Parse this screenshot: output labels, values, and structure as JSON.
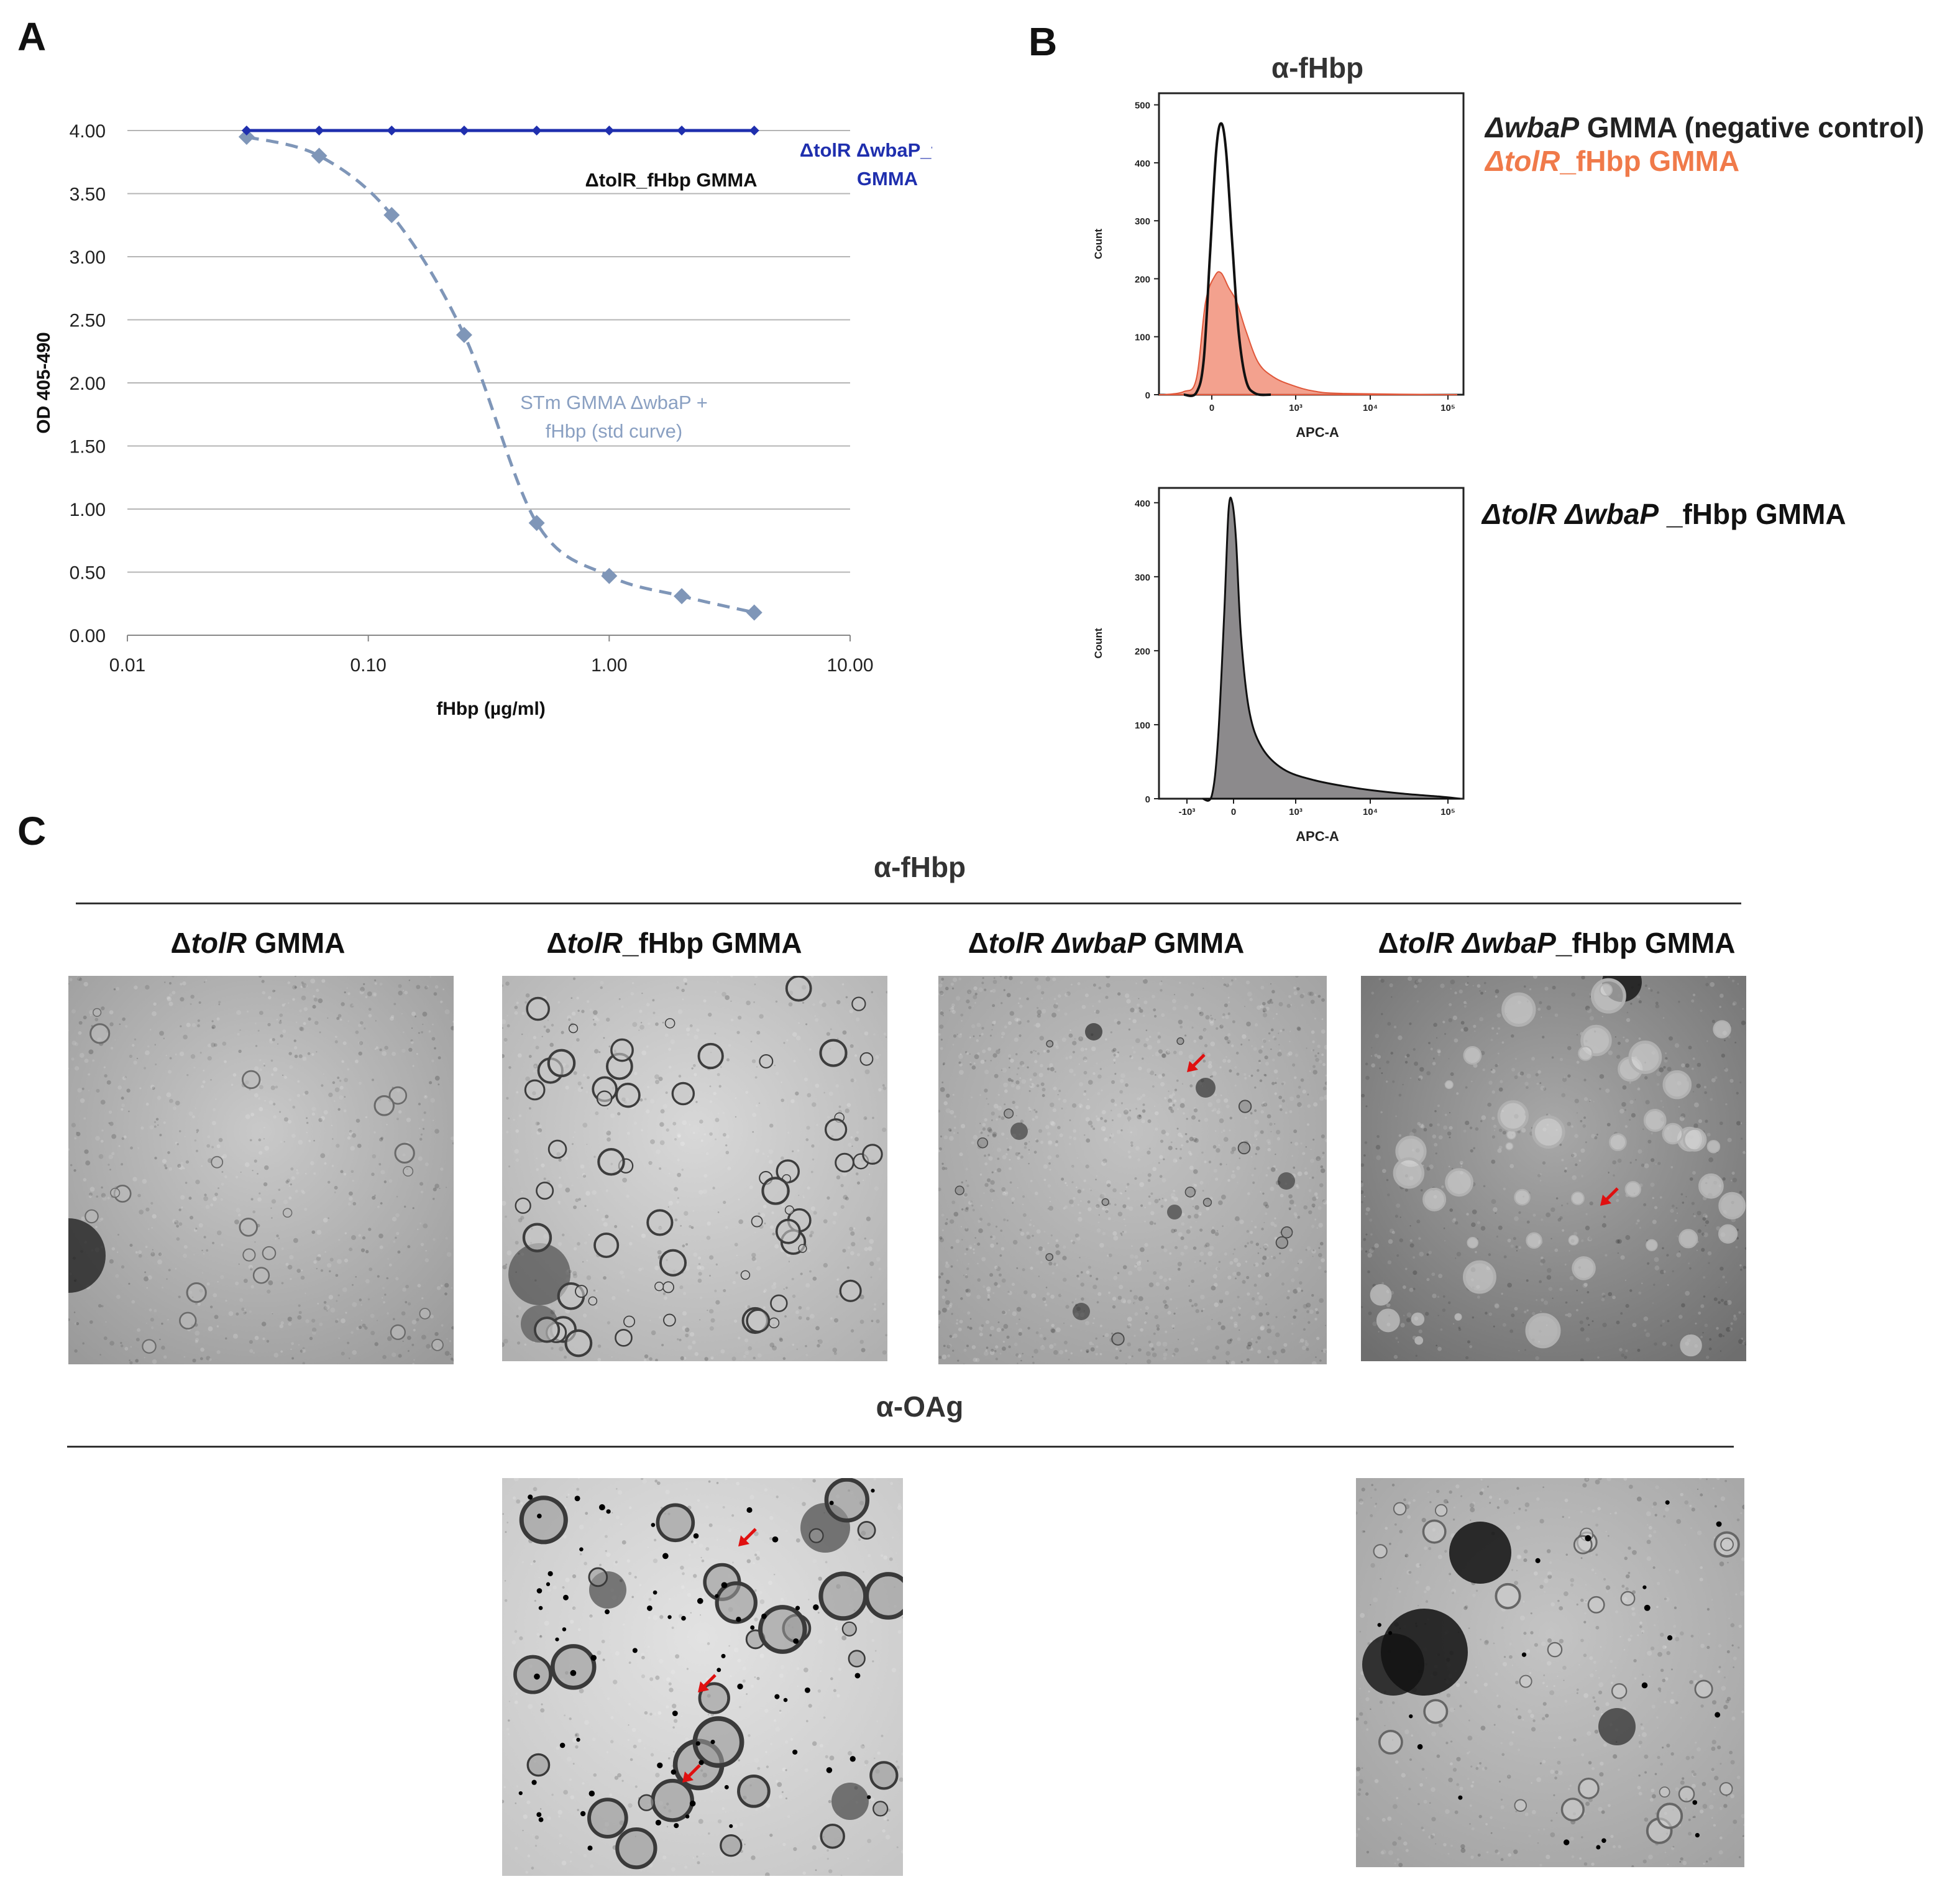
{
  "panel_a": {
    "letter": "A",
    "chart_data": {
      "type": "line",
      "title": "",
      "xlabel": "fHbp (µg/ml)",
      "ylabel": "OD 405-490",
      "xscale": "log",
      "xlim": [
        0.01,
        10
      ],
      "ylim": [
        0,
        4
      ],
      "x_ticks": [
        "0.01",
        "0.10",
        "1.00",
        "10.00"
      ],
      "y_ticks": [
        "0.00",
        "0.50",
        "1.00",
        "1.50",
        "2.00",
        "2.50",
        "3.00",
        "3.50",
        "4.00"
      ],
      "grid": true,
      "series": [
        {
          "name": "ΔtolR ΔwbaP_fHbp GMMA",
          "style": "solid",
          "color": "#1f2fae",
          "x": [
            0.03125,
            0.0625,
            0.125,
            0.25,
            0.5,
            1,
            2,
            4
          ],
          "y": [
            4.0,
            4.0,
            4.0,
            4.0,
            4.0,
            4.0,
            4.0,
            4.0
          ]
        },
        {
          "name": "STm GMMA ΔwbaP + fHbp (std curve)",
          "style": "dashed",
          "color": "#7f96b8",
          "x": [
            0.03125,
            0.0625,
            0.125,
            0.25,
            0.5,
            1,
            2,
            4
          ],
          "y": [
            3.95,
            3.8,
            3.33,
            2.38,
            0.89,
            0.47,
            0.31,
            0.18
          ]
        }
      ],
      "annotations": [
        {
          "text": "ΔtolR_fHbp GMMA",
          "color": "#111111"
        },
        {
          "text_lines": [
            "ΔtolR ΔwbaP_fHbp",
            "GMMA"
          ],
          "color": "#1f2fae"
        },
        {
          "text_lines": [
            "STm GMMA ΔwbaP +",
            "fHbp (std curve)"
          ],
          "color": "#8aa0c2"
        }
      ]
    }
  },
  "panel_b": {
    "letter": "B",
    "title": "α-fHbp",
    "legend_top": {
      "line1_italic": "ΔwbaP",
      "line1_rest": " GMMA (negative control)",
      "line2_italic": "ΔtolR",
      "line2_rest": "_fHbp GMMA"
    },
    "legend_bottom": {
      "italic_a": "ΔtolR ΔwbaP",
      "rest": " _fHbp GMMA"
    },
    "hist_top": {
      "ylabel": "Count",
      "xlabel": "APC-A",
      "y_ticks": [
        "0",
        "100",
        "200",
        "300",
        "400",
        "500"
      ],
      "x_ticks": [
        "0",
        "10³",
        "10⁴",
        "10⁵"
      ],
      "colors": {
        "filled": "#f08a72",
        "outline": "#111111"
      }
    },
    "hist_bottom": {
      "ylabel": "Count",
      "xlabel": "APC-A",
      "y_ticks": [
        "0",
        "100",
        "200",
        "300",
        "400"
      ],
      "x_ticks": [
        "-10³",
        "0",
        "10³",
        "10⁴",
        "10⁵"
      ],
      "colors": {
        "filled": "#8c8a8c",
        "outline": "#111111"
      }
    }
  },
  "panel_c": {
    "letter": "C",
    "row1_title": "α-fHbp",
    "row2_title": "α-OAg",
    "samples": [
      {
        "prefix": "Δ",
        "italic": "tolR",
        "rest": " GMMA"
      },
      {
        "prefix": "Δ",
        "italic": "tolR",
        "rest": "_fHbp GMMA"
      },
      {
        "prefix": "Δ",
        "italic": "tolR Δ",
        "italic2": "wbaP",
        "rest": " GMMA"
      },
      {
        "prefix": "Δ",
        "italic": "tolR Δ",
        "italic2": "wbaP",
        "rest": "_fHbp GMMA"
      }
    ]
  }
}
